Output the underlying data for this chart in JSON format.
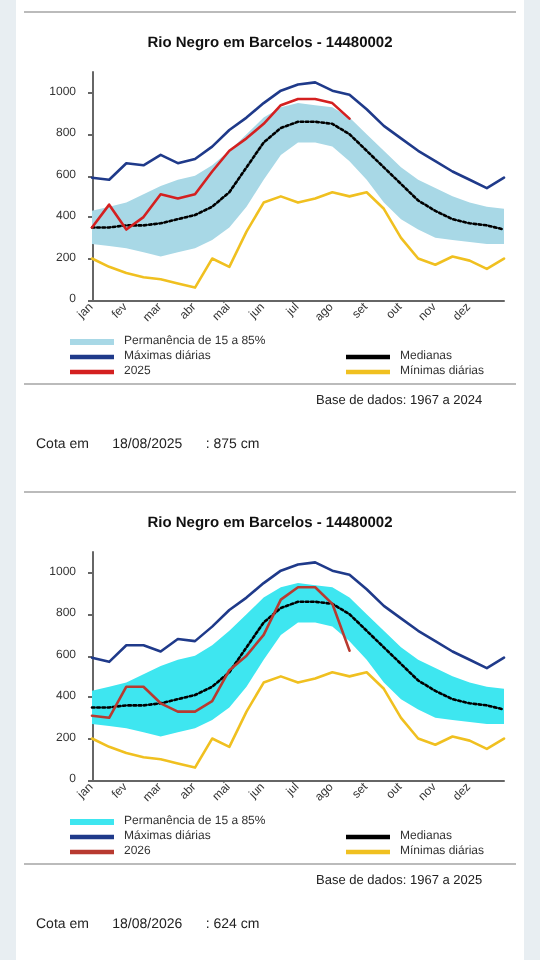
{
  "chart_data": [
    {
      "type": "line",
      "title": "Rio Negro em Barcelos - 14480002",
      "categories": [
        "jan",
        null,
        "fev",
        null,
        "mar",
        null,
        "abr",
        null,
        "mai",
        null,
        "jun",
        null,
        "jul",
        null,
        "ago",
        null,
        "set",
        null,
        "out",
        null,
        "nov",
        null,
        "dez",
        null,
        null
      ],
      "ylim": [
        0,
        1100
      ],
      "yticks": [
        0,
        200,
        400,
        600,
        800,
        1000
      ],
      "legend": "bottom",
      "series": [
        {
          "name": "Permanência de 15 a 85%",
          "type": "area",
          "color": "#a8d8e6",
          "values": [
            null,
            null,
            null,
            null,
            null,
            null,
            null,
            null,
            null,
            null,
            null,
            null,
            null,
            null,
            null,
            null,
            null,
            null,
            null,
            null,
            null,
            null,
            null,
            null,
            null
          ]
        },
        {
          "name": "Medianas",
          "color": "#000000",
          "line_style": "dotted",
          "values": [
            350,
            350,
            360,
            360,
            370,
            390,
            410,
            450,
            520,
            640,
            760,
            830,
            860,
            860,
            850,
            800,
            720,
            640,
            560,
            480,
            430,
            390,
            370,
            360,
            340
          ],
          "lower": [
            270,
            260,
            250,
            230,
            210,
            230,
            250,
            290,
            350,
            450,
            580,
            700,
            760,
            760,
            740,
            670,
            580,
            470,
            390,
            340,
            300,
            290,
            280,
            270,
            270
          ],
          "upper": [
            430,
            450,
            470,
            510,
            550,
            580,
            600,
            650,
            720,
            800,
            880,
            930,
            950,
            940,
            930,
            880,
            800,
            720,
            640,
            580,
            540,
            500,
            470,
            450,
            440
          ]
        },
        {
          "name": "Mínimas diárias",
          "color": "#f0c020",
          "values": [
            200,
            160,
            130,
            110,
            100,
            80,
            60,
            200,
            160,
            330,
            470,
            500,
            470,
            490,
            520,
            500,
            520,
            440,
            300,
            200,
            170,
            210,
            190,
            150,
            200
          ]
        },
        {
          "name": "Máximas diárias",
          "color": "#1f3a8a",
          "values": [
            590,
            580,
            660,
            650,
            700,
            660,
            680,
            740,
            820,
            880,
            950,
            1010,
            1040,
            1050,
            1010,
            990,
            920,
            840,
            780,
            720,
            670,
            620,
            580,
            540,
            590
          ]
        },
        {
          "name": "2025",
          "color": "#d42020",
          "values": [
            350,
            460,
            340,
            400,
            510,
            490,
            510,
            620,
            720,
            780,
            850,
            940,
            970,
            970,
            950,
            875,
            null,
            null,
            null,
            null,
            null,
            null,
            null,
            null,
            null
          ]
        }
      ],
      "annotations": [
        "Base de dados: 1967 a 2024",
        "Cota em      18/08/2025      : 875 cm"
      ]
    },
    {
      "type": "line",
      "title": "Rio Negro em Barcelos - 14480002",
      "categories": [
        "jan",
        null,
        "fev",
        null,
        "mar",
        null,
        "abr",
        null,
        "mai",
        null,
        "jun",
        null,
        "jul",
        null,
        "ago",
        null,
        "set",
        null,
        "out",
        null,
        "nov",
        null,
        "dez",
        null,
        null
      ],
      "ylim": [
        0,
        1100
      ],
      "yticks": [
        0,
        200,
        400,
        600,
        800,
        1000
      ],
      "legend": "bottom",
      "series": [
        {
          "name": "Permanência de 15 a 85%",
          "type": "area",
          "color": "#3ee6f0",
          "values": [
            null,
            null,
            null,
            null,
            null,
            null,
            null,
            null,
            null,
            null,
            null,
            null,
            null,
            null,
            null,
            null,
            null,
            null,
            null,
            null,
            null,
            null,
            null,
            null,
            null
          ]
        },
        {
          "name": "Medianas",
          "color": "#000000",
          "line_style": "dotted",
          "values": [
            350,
            350,
            360,
            360,
            370,
            390,
            410,
            450,
            520,
            640,
            760,
            830,
            860,
            860,
            850,
            800,
            720,
            640,
            560,
            480,
            430,
            390,
            370,
            360,
            340
          ],
          "lower": [
            270,
            260,
            250,
            230,
            210,
            230,
            250,
            290,
            350,
            450,
            580,
            700,
            760,
            760,
            740,
            670,
            580,
            470,
            390,
            340,
            300,
            290,
            280,
            270,
            270
          ],
          "upper": [
            430,
            450,
            470,
            510,
            550,
            580,
            600,
            650,
            720,
            800,
            880,
            930,
            950,
            940,
            930,
            880,
            800,
            720,
            640,
            580,
            540,
            500,
            470,
            450,
            440
          ]
        },
        {
          "name": "Mínimas diárias",
          "color": "#f0c020",
          "values": [
            200,
            160,
            130,
            110,
            100,
            80,
            60,
            200,
            160,
            330,
            470,
            500,
            470,
            490,
            520,
            500,
            520,
            440,
            300,
            200,
            170,
            210,
            190,
            150,
            200
          ]
        },
        {
          "name": "Máximas diárias",
          "color": "#1f3a8a",
          "values": [
            590,
            570,
            650,
            650,
            620,
            680,
            670,
            740,
            820,
            880,
            950,
            1010,
            1040,
            1050,
            1010,
            990,
            920,
            840,
            780,
            720,
            670,
            620,
            580,
            540,
            590
          ]
        },
        {
          "name": "2026",
          "color": "#b83a30",
          "values": [
            310,
            300,
            450,
            450,
            370,
            330,
            330,
            380,
            530,
            600,
            700,
            870,
            930,
            930,
            850,
            624,
            null,
            null,
            null,
            null,
            null,
            null,
            null,
            null,
            null
          ]
        }
      ],
      "annotations": [
        "Base de dados: 1967 a 2025",
        "Cota em      18/08/2026      : 624 cm"
      ]
    }
  ]
}
